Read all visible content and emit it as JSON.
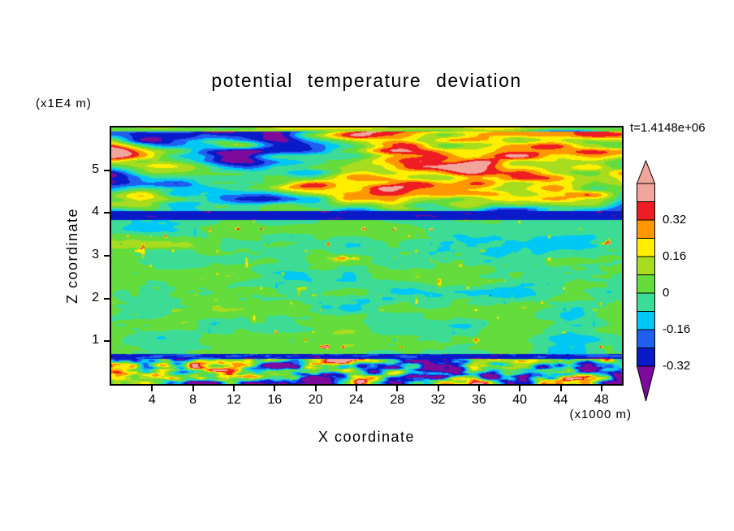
{
  "title": "potential temperature deviation",
  "timestamp": "t=1.4148e+06",
  "axes": {
    "x": {
      "label": "X coordinate",
      "units": "(x1000 m)",
      "ticks": [
        "4",
        "8",
        "12",
        "16",
        "20",
        "24",
        "28",
        "32",
        "36",
        "40",
        "44",
        "48"
      ]
    },
    "z": {
      "label": "Z coordinate",
      "units": "(x1E4 m)",
      "ticks": [
        "1",
        "2",
        "3",
        "4",
        "5"
      ]
    }
  },
  "colorbar": {
    "labels": [
      "0.32",
      "0.16",
      "0",
      "-0.16",
      "-0.32"
    ],
    "top_cap_color": "#f2a59d",
    "bottom_cap_color": "#7d0a9b",
    "segments": [
      {
        "value_range": "above 0.40",
        "color": "#f2a59d"
      },
      {
        "value_range": "0.32 to 0.40",
        "color": "#ee1c23"
      },
      {
        "value_range": "0.24 to 0.32",
        "color": "#ff9800"
      },
      {
        "value_range": "0.16 to 0.24",
        "color": "#ffee00"
      },
      {
        "value_range": "0.08 to 0.16",
        "color": "#a8dc1e"
      },
      {
        "value_range": "0.00 to 0.08",
        "color": "#64dc3c"
      },
      {
        "value_range": "-0.08 to 0.00",
        "color": "#3ddc96"
      },
      {
        "value_range": "-0.16 to -0.08",
        "color": "#00c8f5"
      },
      {
        "value_range": "-0.24 to -0.16",
        "color": "#2060f0"
      },
      {
        "value_range": "-0.32 to -0.24",
        "color": "#0a1ac8"
      }
    ]
  },
  "chart_data": {
    "type": "heatmap",
    "title": "potential temperature deviation",
    "xlabel": "X coordinate",
    "ylabel": "Z coordinate",
    "x_units": "(x1000 m)",
    "y_units": "(x1E4 m)",
    "xlim": [
      0,
      50
    ],
    "ylim": [
      0,
      6
    ],
    "x_ticks": [
      4,
      8,
      12,
      16,
      20,
      24,
      28,
      32,
      36,
      40,
      44,
      48
    ],
    "y_ticks": [
      1,
      2,
      3,
      4,
      5
    ],
    "time_annotation": "t=1.4148e+06",
    "grid": false,
    "legend_position": "right-colorbar",
    "contour_levels": [
      -0.32,
      -0.24,
      -0.16,
      -0.08,
      0,
      0.08,
      0.16,
      0.24,
      0.32,
      0.4
    ],
    "palette_low_to_high": [
      "#7d0a9b",
      "#0a1ac8",
      "#2060f0",
      "#00c8f5",
      "#3ddc96",
      "#64dc3c",
      "#a8dc1e",
      "#ffee00",
      "#ff9800",
      "#ee1c23",
      "#f2a59d"
    ],
    "field_model": {
      "description": "Horizontally layered potential-temperature deviation field from an atmospheric simulation",
      "regions": [
        {
          "name": "upper_turbulent",
          "z_range": [
            4.05,
            6
          ],
          "mean": 0.06,
          "amplitude": 0.75,
          "x_scale": 0.0055,
          "y_scale": 0.035,
          "seed": 0,
          "description": "z = 4 to 6 (x1E4 m): large-amplitude elongated wave bands alternating strong positive (salmon, above 0.4) and strong negative (purple, below -0.32) with thin rainbow fringes of red, orange, yellow, green, cyan and blue between them"
        },
        {
          "name": "navy_interface",
          "z_range": [
            3.85,
            4.05
          ],
          "mean": -0.29,
          "amplitude": 0.06,
          "x_scale": 0.05,
          "y_scale": 0.35,
          "seed": 37,
          "description": "thin dark navy band spanning the full width just below z = 4"
        },
        {
          "name": "middle_quiescent",
          "z_range": [
            0.72,
            3.85
          ],
          "mean": -0.015,
          "amplitude": 0.16,
          "x_scale": 0.014,
          "y_scale": 0.05,
          "seed": 74,
          "description": "z = 0.7 to 3.9: near-zero deviation, mint-green background with light-green mottled patches and sparse small warm (yellow/orange/red) speckles"
        },
        {
          "name": "lower_interface",
          "z_range": [
            0.59,
            0.72
          ],
          "mean": -0.26,
          "amplitude": 0.12,
          "x_scale": 0.04,
          "y_scale": 0.3,
          "seed": 111,
          "description": "thin dark blue band near z = 0.65"
        },
        {
          "name": "bottom_turbulent",
          "z_range": [
            0,
            0.59
          ],
          "mean": -0.03,
          "amplitude": 0.75,
          "x_scale": 0.02,
          "y_scale": 0.09,
          "seed": 148,
          "description": "surface layer with small turbulent blobs spanning the full color range (cyan, navy, yellow, orange, red on green background)"
        }
      ]
    }
  }
}
